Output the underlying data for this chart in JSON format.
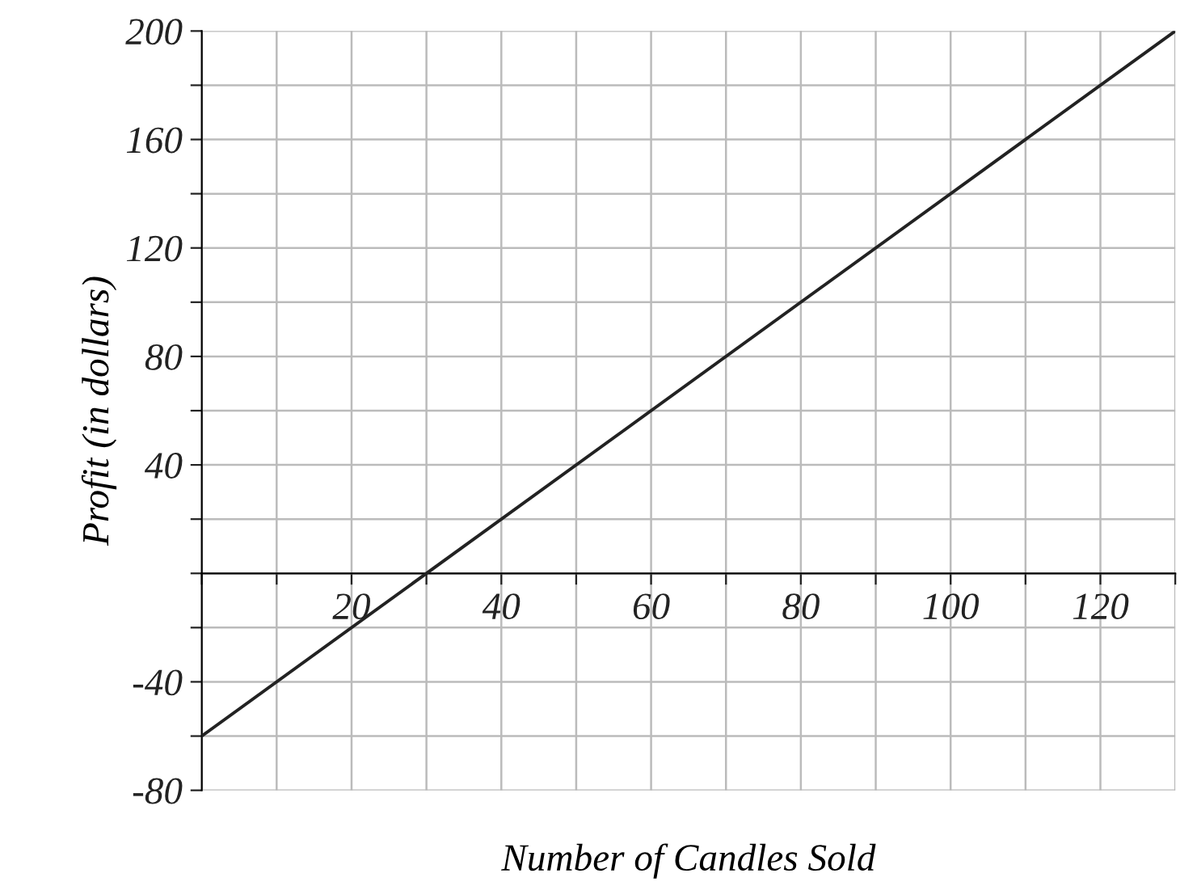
{
  "chart_data": {
    "type": "line",
    "xlabel": "Number of Candles Sold",
    "ylabel": "Profit (in dollars)",
    "series": [
      {
        "color": "#222222",
        "x": [
          0,
          130
        ],
        "values": [
          -60,
          200
        ]
      }
    ],
    "xlim": [
      0,
      130
    ],
    "ylim": [
      -80,
      200
    ],
    "xticks": [
      {
        "value": 0,
        "label": null
      },
      {
        "value": 10,
        "label": null
      },
      20,
      {
        "value": 30,
        "label": null
      },
      40,
      {
        "value": 50,
        "label": null
      },
      60,
      {
        "value": 70,
        "label": null
      },
      80,
      {
        "value": 90,
        "label": null
      },
      100,
      {
        "value": 110,
        "label": null
      },
      120,
      {
        "value": 130,
        "label": null
      }
    ],
    "yticks": [
      -80,
      {
        "value": -60,
        "label": null
      },
      -40,
      {
        "value": -20,
        "label": null
      },
      {
        "value": 0,
        "label": null
      },
      {
        "value": 20,
        "label": null
      },
      40,
      {
        "value": 60,
        "label": null
      },
      80,
      {
        "value": 100,
        "label": null
      },
      120,
      {
        "value": 140,
        "label": null
      },
      160,
      {
        "value": 180,
        "label": null
      },
      200
    ],
    "grid": true,
    "line_style": "solid",
    "marker": "none"
  }
}
